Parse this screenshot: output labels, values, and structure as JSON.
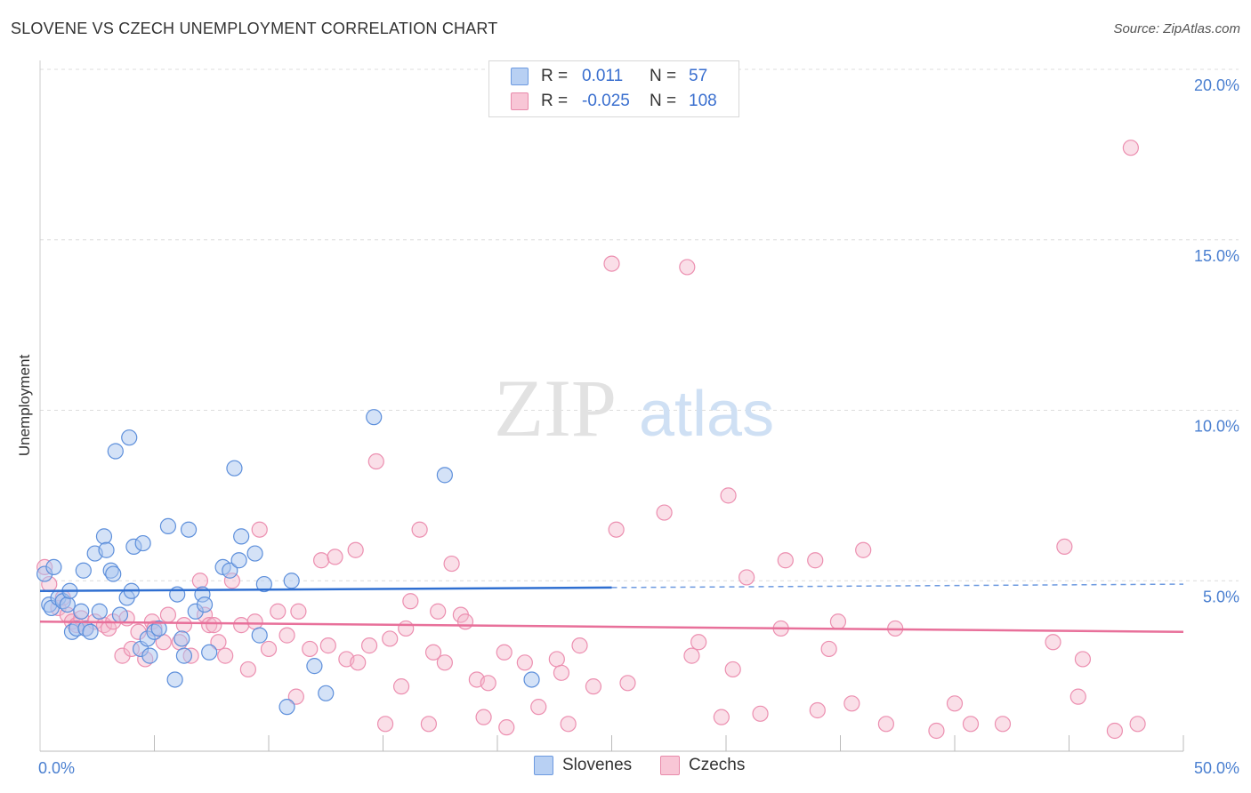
{
  "title": "SLOVENE VS CZECH UNEMPLOYMENT CORRELATION CHART",
  "source": "Source: ZipAtlas.com",
  "colors": {
    "blue": "#4f86d9",
    "blue_fill": "#a9c6f0",
    "pink": "#e8709a",
    "pink_fill": "#f5b9cd",
    "tick": "#4a7fd0"
  },
  "legend": {
    "rows": [
      {
        "r_label": "R =",
        "r_value": " 0.011",
        "n_label": "N =",
        "n_value": " 57"
      },
      {
        "r_label": "R =",
        "r_value": "-0.025",
        "n_label": "N =",
        "n_value": "108"
      }
    ]
  },
  "bottom_legend": [
    "Slovenes",
    "Czechs"
  ],
  "chart_data": {
    "type": "scatter",
    "title": "SLOVENE VS CZECH UNEMPLOYMENT CORRELATION CHART",
    "ylabel": "Unemployment",
    "xlim": [
      0,
      50
    ],
    "ylim": [
      0,
      20
    ],
    "x_tick_labels": [
      "0.0%",
      "50.0%"
    ],
    "y_ticks": [
      5,
      10,
      15,
      20
    ],
    "y_tick_labels": [
      "5.0%",
      "10.0%",
      "15.0%",
      "20.0%"
    ],
    "grid": "horizontal dashed",
    "legend_position": "top-center",
    "series": [
      {
        "name": "Slovenes",
        "r": 0.011,
        "n": 57,
        "trend": {
          "x_start": 0,
          "y_start": 4.7,
          "x_solid_end": 25,
          "y_solid_end": 4.8,
          "x_end": 50,
          "y_end": 4.9
        },
        "points": [
          [
            0.2,
            5.2
          ],
          [
            0.4,
            4.3
          ],
          [
            0.5,
            4.2
          ],
          [
            0.6,
            5.4
          ],
          [
            0.8,
            4.5
          ],
          [
            1.0,
            4.4
          ],
          [
            1.2,
            4.3
          ],
          [
            1.3,
            4.7
          ],
          [
            1.4,
            3.5
          ],
          [
            1.6,
            3.6
          ],
          [
            1.8,
            4.1
          ],
          [
            1.9,
            5.3
          ],
          [
            2.0,
            3.6
          ],
          [
            2.2,
            3.5
          ],
          [
            2.4,
            5.8
          ],
          [
            2.6,
            4.1
          ],
          [
            2.8,
            6.3
          ],
          [
            2.9,
            5.9
          ],
          [
            3.1,
            5.3
          ],
          [
            3.2,
            5.2
          ],
          [
            3.3,
            8.8
          ],
          [
            3.5,
            4.0
          ],
          [
            3.8,
            4.5
          ],
          [
            3.9,
            9.2
          ],
          [
            4.0,
            4.7
          ],
          [
            4.1,
            6.0
          ],
          [
            4.4,
            3.0
          ],
          [
            4.5,
            6.1
          ],
          [
            4.7,
            3.3
          ],
          [
            4.8,
            2.8
          ],
          [
            5.0,
            3.5
          ],
          [
            5.2,
            3.6
          ],
          [
            5.6,
            6.6
          ],
          [
            5.9,
            2.1
          ],
          [
            6.0,
            4.6
          ],
          [
            6.2,
            3.3
          ],
          [
            6.3,
            2.8
          ],
          [
            6.5,
            6.5
          ],
          [
            6.8,
            4.1
          ],
          [
            7.1,
            4.6
          ],
          [
            7.2,
            4.3
          ],
          [
            7.4,
            2.9
          ],
          [
            8.0,
            5.4
          ],
          [
            8.3,
            5.3
          ],
          [
            8.5,
            8.3
          ],
          [
            8.7,
            5.6
          ],
          [
            8.8,
            6.3
          ],
          [
            9.4,
            5.8
          ],
          [
            9.6,
            3.4
          ],
          [
            9.8,
            4.9
          ],
          [
            11.0,
            5.0
          ],
          [
            10.8,
            1.3
          ],
          [
            12.0,
            2.5
          ],
          [
            12.5,
            1.7
          ],
          [
            14.6,
            9.8
          ],
          [
            17.7,
            8.1
          ],
          [
            21.5,
            2.1
          ]
        ]
      },
      {
        "name": "Czechs",
        "r": -0.025,
        "n": 108,
        "trend": {
          "x_start": 0,
          "y_start": 3.8,
          "x_end": 50,
          "y_end": 3.5
        },
        "points": [
          [
            0.2,
            5.4
          ],
          [
            0.4,
            4.9
          ],
          [
            0.8,
            4.2
          ],
          [
            1.0,
            4.5
          ],
          [
            1.2,
            4.0
          ],
          [
            1.4,
            3.8
          ],
          [
            1.6,
            3.7
          ],
          [
            1.8,
            3.9
          ],
          [
            2.0,
            3.6
          ],
          [
            2.4,
            3.8
          ],
          [
            2.8,
            3.7
          ],
          [
            3.0,
            3.6
          ],
          [
            3.2,
            3.8
          ],
          [
            3.6,
            2.8
          ],
          [
            3.8,
            3.9
          ],
          [
            4.0,
            3.0
          ],
          [
            4.3,
            3.5
          ],
          [
            4.6,
            2.7
          ],
          [
            4.9,
            3.8
          ],
          [
            5.0,
            3.6
          ],
          [
            5.4,
            3.2
          ],
          [
            5.6,
            4.0
          ],
          [
            6.1,
            3.2
          ],
          [
            6.3,
            3.7
          ],
          [
            6.6,
            2.8
          ],
          [
            7.0,
            5.0
          ],
          [
            7.2,
            4.0
          ],
          [
            7.4,
            3.7
          ],
          [
            7.6,
            3.7
          ],
          [
            7.8,
            3.2
          ],
          [
            8.1,
            2.8
          ],
          [
            8.4,
            5.0
          ],
          [
            8.8,
            3.7
          ],
          [
            9.1,
            2.4
          ],
          [
            9.4,
            3.8
          ],
          [
            9.6,
            6.5
          ],
          [
            10.0,
            3.0
          ],
          [
            10.4,
            4.1
          ],
          [
            10.8,
            3.4
          ],
          [
            11.2,
            1.6
          ],
          [
            11.3,
            4.1
          ],
          [
            11.8,
            3.0
          ],
          [
            12.3,
            5.6
          ],
          [
            12.6,
            3.1
          ],
          [
            12.9,
            5.7
          ],
          [
            13.4,
            2.7
          ],
          [
            13.8,
            5.9
          ],
          [
            13.9,
            2.6
          ],
          [
            14.4,
            3.1
          ],
          [
            14.7,
            8.5
          ],
          [
            15.1,
            0.8
          ],
          [
            15.3,
            3.3
          ],
          [
            15.8,
            1.9
          ],
          [
            16.0,
            3.6
          ],
          [
            16.2,
            4.4
          ],
          [
            16.6,
            6.5
          ],
          [
            17.0,
            0.8
          ],
          [
            17.2,
            2.9
          ],
          [
            17.4,
            4.1
          ],
          [
            17.7,
            2.6
          ],
          [
            18.0,
            5.5
          ],
          [
            18.4,
            4.0
          ],
          [
            18.6,
            3.8
          ],
          [
            19.1,
            2.1
          ],
          [
            19.4,
            1.0
          ],
          [
            19.6,
            2.0
          ],
          [
            20.3,
            2.9
          ],
          [
            20.4,
            0.7
          ],
          [
            21.2,
            2.6
          ],
          [
            21.8,
            1.3
          ],
          [
            22.6,
            2.7
          ],
          [
            22.8,
            2.3
          ],
          [
            23.1,
            0.8
          ],
          [
            23.6,
            3.1
          ],
          [
            24.2,
            1.9
          ],
          [
            25.0,
            14.3
          ],
          [
            25.2,
            6.5
          ],
          [
            25.7,
            2.0
          ],
          [
            27.3,
            7.0
          ],
          [
            28.3,
            14.2
          ],
          [
            28.5,
            2.8
          ],
          [
            28.8,
            3.2
          ],
          [
            29.8,
            1.0
          ],
          [
            30.1,
            7.5
          ],
          [
            30.3,
            2.4
          ],
          [
            30.9,
            5.1
          ],
          [
            31.5,
            1.1
          ],
          [
            32.4,
            3.6
          ],
          [
            32.6,
            5.6
          ],
          [
            33.9,
            5.6
          ],
          [
            34.0,
            1.2
          ],
          [
            34.5,
            3.0
          ],
          [
            34.9,
            3.8
          ],
          [
            35.5,
            1.4
          ],
          [
            36.0,
            5.9
          ],
          [
            37.0,
            0.8
          ],
          [
            37.4,
            3.6
          ],
          [
            39.2,
            0.6
          ],
          [
            40.0,
            1.4
          ],
          [
            40.7,
            0.8
          ],
          [
            42.1,
            0.8
          ],
          [
            44.3,
            3.2
          ],
          [
            44.8,
            6.0
          ],
          [
            45.4,
            1.6
          ],
          [
            45.6,
            2.7
          ],
          [
            47.0,
            0.6
          ],
          [
            48.0,
            0.8
          ],
          [
            47.7,
            17.7
          ]
        ]
      }
    ]
  }
}
